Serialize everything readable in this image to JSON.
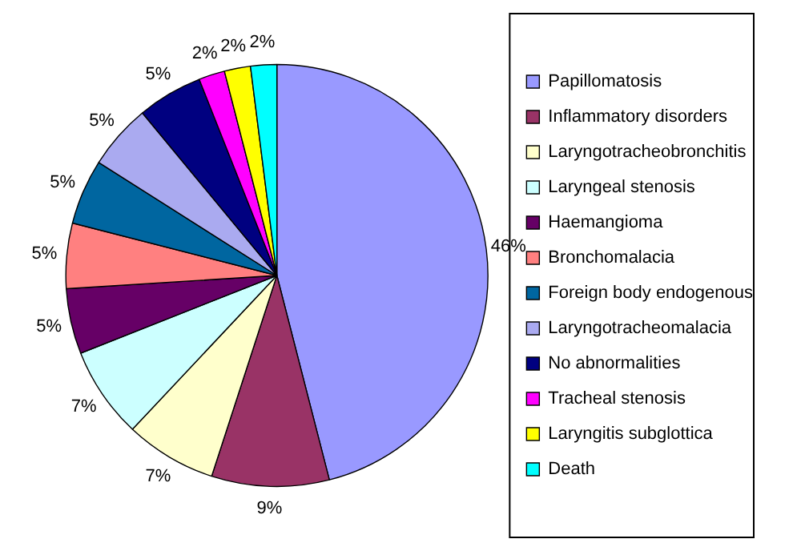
{
  "chart_data": {
    "type": "pie",
    "categories": [
      "Papillomatosis",
      "Inflammatory disorders",
      "Laryngotracheobronchitis",
      "Laryngeal stenosis",
      "Haemangioma",
      "Bronchomalacia",
      "Foreign body endogenous",
      "Laryngotracheomalacia",
      "No abnormalities",
      "Tracheal stenosis",
      "Laryngitis subglottica",
      "Death"
    ],
    "values": [
      46,
      9,
      7,
      7,
      5,
      5,
      5,
      5,
      5,
      2,
      2,
      2
    ],
    "value_labels": [
      "46%",
      "9%",
      "7%",
      "7%",
      "5%",
      "5%",
      "5%",
      "5%",
      "5%",
      "2%",
      "2%",
      "2%"
    ],
    "colors": [
      "#9999ff",
      "#993366",
      "#ffffcc",
      "#ccffff",
      "#660066",
      "#ff8080",
      "#0066a0",
      "#aaaaf0",
      "#000080",
      "#ff00ff",
      "#ffff00",
      "#00ffff"
    ],
    "legend": "right"
  }
}
